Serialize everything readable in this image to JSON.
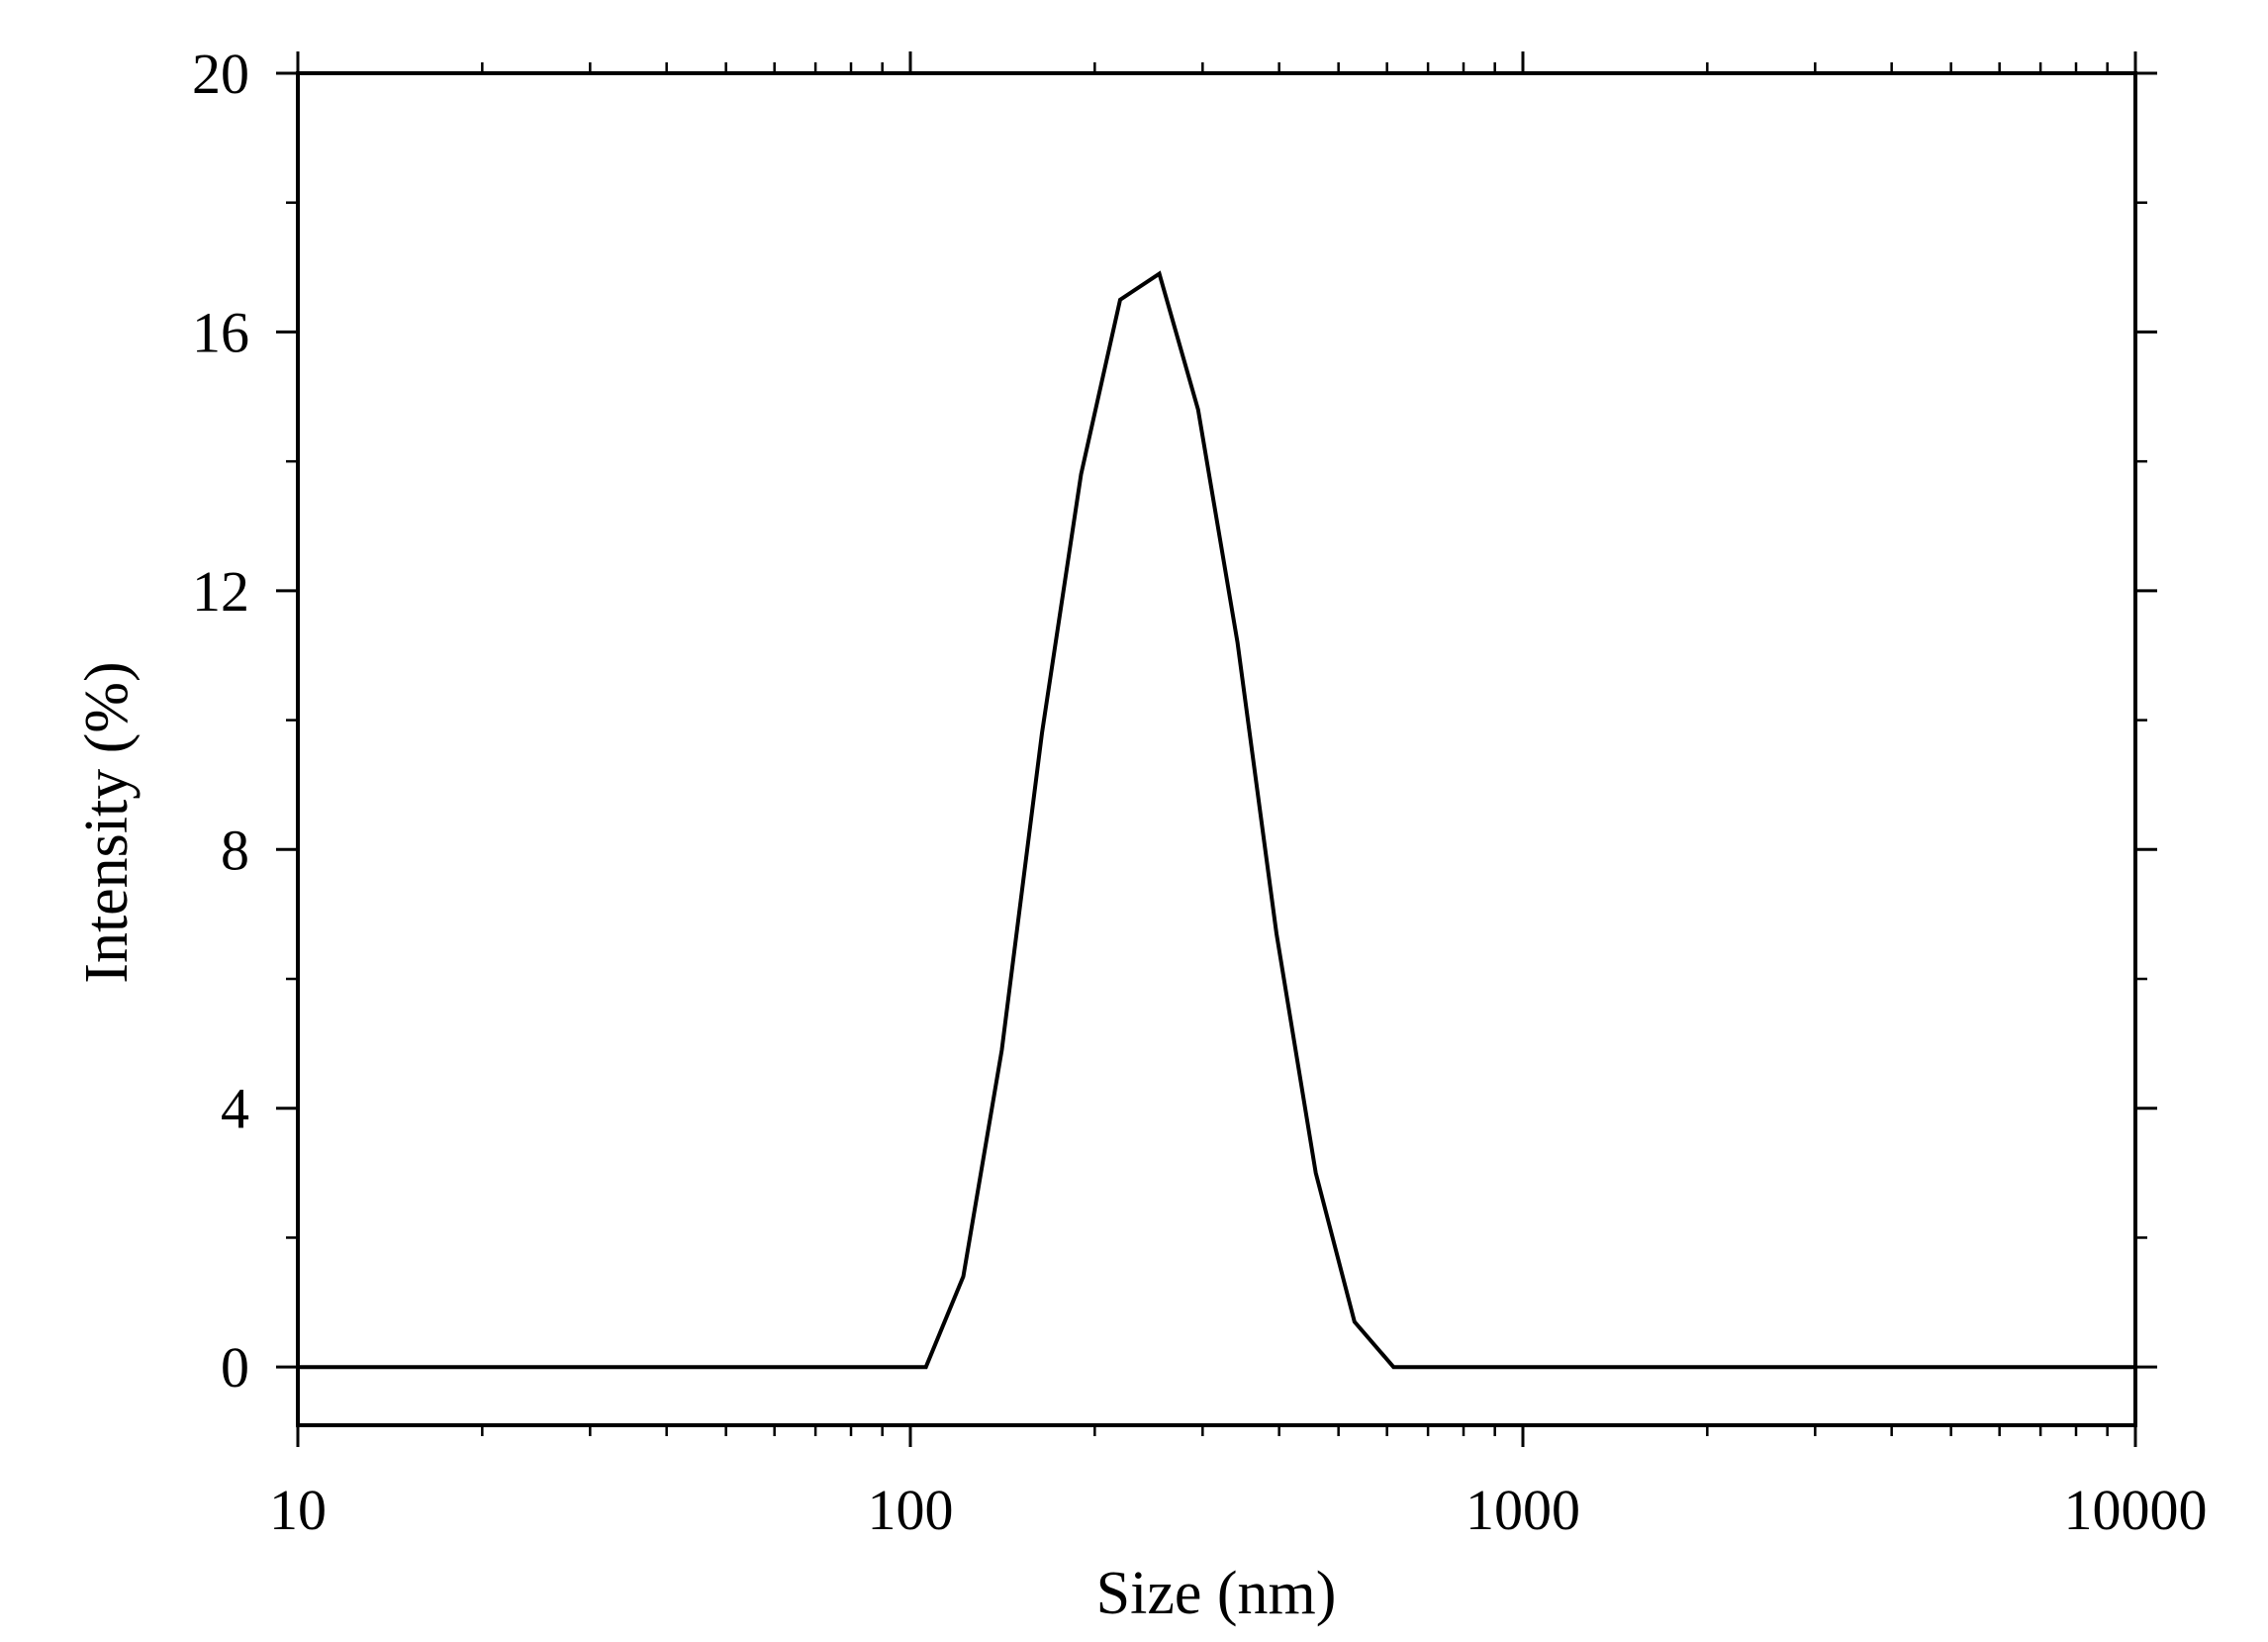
{
  "chart_data": {
    "type": "line",
    "title": "",
    "xlabel": "Size (nm)",
    "ylabel": "Intensity (%)",
    "x_scale": "log",
    "xlim": [
      10,
      10000
    ],
    "ylim": [
      -0.9,
      20
    ],
    "x_ticks": [
      10,
      100,
      1000,
      10000
    ],
    "x_tick_labels": [
      "10",
      "100",
      "1000",
      "10000"
    ],
    "y_ticks": [
      0,
      4,
      8,
      12,
      16,
      20
    ],
    "y_tick_labels": [
      "0",
      "4",
      "8",
      "12",
      "16",
      "20"
    ],
    "grid": false,
    "legend": "none",
    "line_color": "#000000",
    "series": [
      {
        "x": [
          10,
          106,
          122,
          141,
          164,
          190,
          220,
          255,
          295,
          342,
          396,
          459,
          531,
          615,
          1000,
          10000
        ],
        "y": [
          0,
          0,
          1.4,
          4.9,
          9.8,
          13.8,
          16.5,
          16.9,
          14.8,
          11.2,
          6.7,
          3.0,
          0.7,
          0,
          0,
          0
        ]
      }
    ]
  }
}
